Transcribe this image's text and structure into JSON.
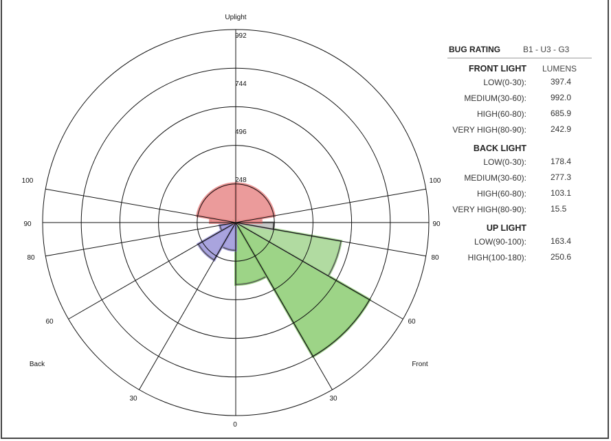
{
  "chart_data": {
    "type": "polar",
    "title": "",
    "ring_labels": [
      "248",
      "496",
      "744",
      "992"
    ],
    "max_value": 1240,
    "direction_labels": {
      "top": "Uplight",
      "left": "Back",
      "right": "Front"
    },
    "angle_labels": {
      "left": [
        "100",
        "90",
        "80",
        "60",
        "30"
      ],
      "right": [
        "100",
        "90",
        "80",
        "60",
        "30"
      ],
      "bottom": "0"
    },
    "zones": [
      {
        "name": "FRONT LOW(0-30)",
        "side": "front",
        "from": 0,
        "to": 30,
        "value": 397.4,
        "color": "#8ccc72"
      },
      {
        "name": "FRONT MEDIUM(30-60)",
        "side": "front",
        "from": 30,
        "to": 60,
        "value": 992.0,
        "color": "#8ccc72"
      },
      {
        "name": "FRONT HIGH(60-80)",
        "side": "front",
        "from": 60,
        "to": 80,
        "value": 685.9,
        "color": "#a3d591"
      },
      {
        "name": "FRONT VERY HIGH(80-90)",
        "side": "front",
        "from": 80,
        "to": 90,
        "value": 242.9,
        "color": "#bfbfbf"
      },
      {
        "name": "BACK LOW(0-30)",
        "side": "back",
        "from": 0,
        "to": 30,
        "value": 178.4,
        "color": "#9a94d8"
      },
      {
        "name": "BACK MEDIUM(30-60)",
        "side": "back",
        "from": 30,
        "to": 60,
        "value": 277.3,
        "color": "#9a94d8"
      },
      {
        "name": "BACK HIGH(60-80)",
        "side": "back",
        "from": 60,
        "to": 80,
        "value": 103.1,
        "color": "#9a94d8"
      },
      {
        "name": "BACK VERY HIGH(80-90)",
        "side": "back",
        "from": 80,
        "to": 90,
        "value": 15.5,
        "color": "#e88a8a"
      },
      {
        "name": "UP LOW(90-100)",
        "side": "up",
        "from": 90,
        "to": 100,
        "value": 163.4,
        "color": "#e88a8a"
      },
      {
        "name": "UP HIGH(100-180)",
        "side": "up",
        "from": 100,
        "to": 180,
        "value": 250.6,
        "color": "#e88a8a"
      }
    ]
  },
  "table": {
    "bug_title": "BUG RATING",
    "bug_value": "B1 - U3 - G3",
    "front": {
      "title": "FRONT LIGHT",
      "col": "LUMENS",
      "rows": [
        {
          "label": "LOW(0-30):",
          "value": "397.4"
        },
        {
          "label": "MEDIUM(30-60):",
          "value": "992.0"
        },
        {
          "label": "HIGH(60-80):",
          "value": "685.9"
        },
        {
          "label": "VERY HIGH(80-90):",
          "value": "242.9"
        }
      ]
    },
    "back": {
      "title": "BACK LIGHT",
      "rows": [
        {
          "label": "LOW(0-30):",
          "value": "178.4"
        },
        {
          "label": "MEDIUM(30-60):",
          "value": "277.3"
        },
        {
          "label": "HIGH(60-80):",
          "value": "103.1"
        },
        {
          "label": "VERY HIGH(80-90):",
          "value": "15.5"
        }
      ]
    },
    "up": {
      "title": "UP LIGHT",
      "rows": [
        {
          "label": "LOW(90-100):",
          "value": "163.4"
        },
        {
          "label": "HIGH(100-180):",
          "value": "250.6"
        }
      ]
    }
  }
}
